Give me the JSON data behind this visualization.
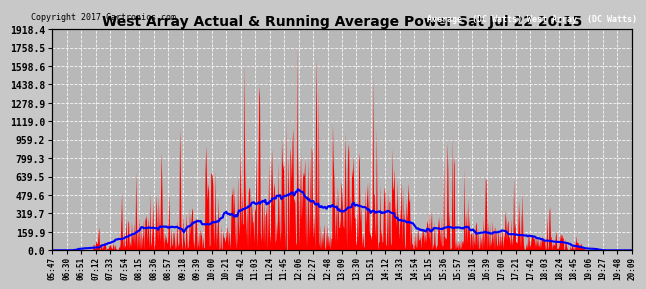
{
  "title": "West Array Actual & Running Average Power Sat Jul 22 20:15",
  "copyright": "Copyright 2017 Cartronics.com",
  "legend_avg": "Average  (DC Watts)",
  "legend_west": "West Array  (DC Watts)",
  "ylabel_values": [
    0.0,
    159.9,
    319.7,
    479.6,
    639.5,
    799.3,
    959.2,
    1119.0,
    1278.9,
    1438.8,
    1598.6,
    1758.5,
    1918.4
  ],
  "ymax": 1918.4,
  "ymin": 0.0,
  "bg_color": "#c8c8c8",
  "plot_bg_color": "#b8b8b8",
  "fill_color": "#ff0000",
  "avg_line_color": "#0000ff",
  "grid_color": "#ffffff",
  "x_tick_labels": [
    "05:47",
    "06:30",
    "06:51",
    "07:12",
    "07:33",
    "07:54",
    "08:15",
    "08:36",
    "08:57",
    "09:18",
    "09:39",
    "10:00",
    "10:21",
    "10:42",
    "11:03",
    "11:24",
    "11:45",
    "12:06",
    "12:27",
    "12:48",
    "13:09",
    "13:30",
    "13:51",
    "14:12",
    "14:33",
    "14:54",
    "15:15",
    "15:36",
    "15:57",
    "16:18",
    "16:39",
    "17:00",
    "17:21",
    "17:42",
    "18:03",
    "18:24",
    "18:45",
    "19:06",
    "19:27",
    "19:48",
    "20:09"
  ],
  "n_points": 820
}
